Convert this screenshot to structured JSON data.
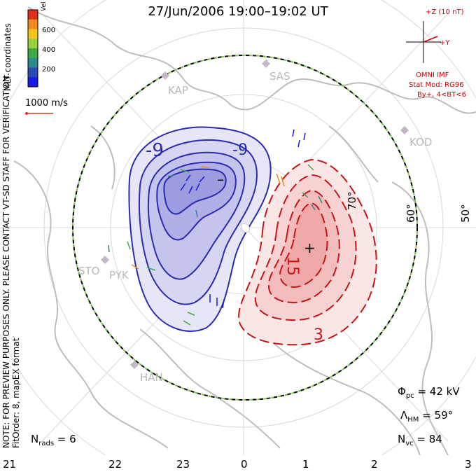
{
  "header": {
    "title": "27/Jun/2006 19:00–19:02 UT"
  },
  "side_text": {
    "coords": "MLT coordinates",
    "note": "NOTE: FOR PREVIEW PURPOSES ONLY. PLEASE CONTACT VT-SD STAFF FOR VERIFICATION.",
    "fit": "FitOrder: 8, mapEX format"
  },
  "legend": {
    "vel_label": "Vel [m/s]",
    "ticks": [
      "600",
      "400",
      "200"
    ],
    "scale_label": "1000 m/s",
    "colors": [
      "#e0301c",
      "#f08a1e",
      "#f5c21e",
      "#9ad23c",
      "#3fa84a",
      "#2c8a8a",
      "#2a4ab4",
      "#1a1ae6"
    ]
  },
  "imf": {
    "plus_z": "+Z (10 nT)",
    "plus_y": "+Y",
    "source": "OMNI IMF",
    "model": "Stat Mod: RG96",
    "condition": "By+, 4<BT<6"
  },
  "stations": [
    "KAP",
    "SAS",
    "KOD",
    "STO",
    "PYK",
    "HAN"
  ],
  "latitudes": [
    "70°",
    "60°",
    "50°"
  ],
  "contours": {
    "neg_label": "-9",
    "neg_label_b": "-9",
    "pos_label": "15",
    "pos_label_b": "3",
    "neg_mark": "–",
    "pos_mark": "+"
  },
  "stats": {
    "phi": "Φ",
    "phi_sub": "pc",
    "phi_val": " = 42 kV",
    "lambda": "Λ",
    "lambda_sub": "HM",
    "lambda_val": " = 59°",
    "nvc": "N",
    "nvc_sub": "vc",
    "nvc_val": " = 84",
    "nrads": "N",
    "nrads_sub": "rads",
    "nrads_val": " = 6"
  },
  "mlt_axis": [
    "21",
    "22",
    "23",
    "0",
    "1",
    "2",
    "3"
  ],
  "colors": {
    "negative": "#2a2ab4",
    "positive": "#c81414",
    "neg_fill": "#9090e0",
    "pos_fill": "#f0a0a0",
    "boundary_a": "#000000",
    "boundary_b": "#7ac142",
    "land": "#bdbdbd"
  }
}
